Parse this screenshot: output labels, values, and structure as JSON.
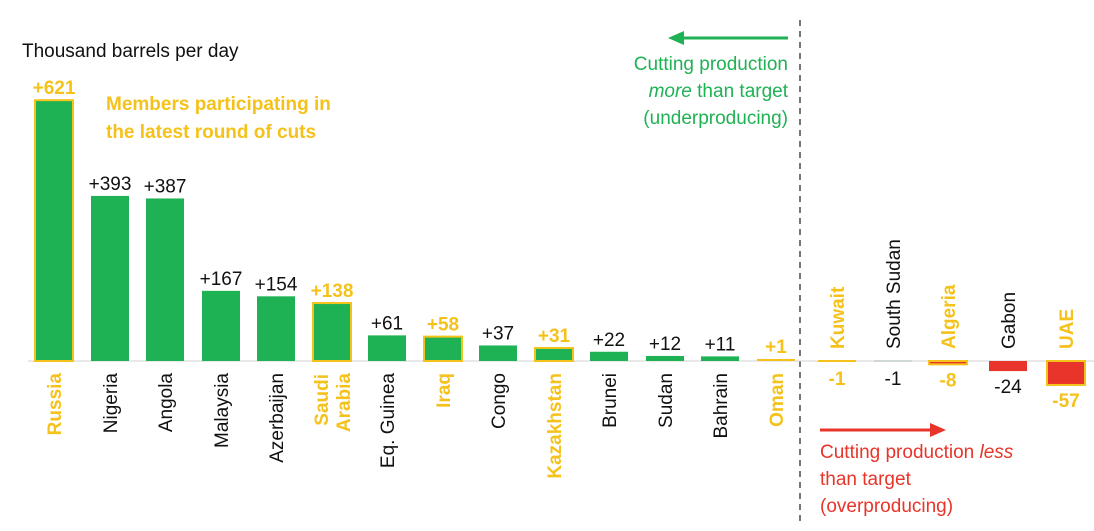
{
  "chart_data": {
    "type": "bar",
    "unit_label": "Thousand barrels per day",
    "categories": [
      "Russia",
      "Nigeria",
      "Angola",
      "Malaysia",
      "Azerbaijan",
      "Saudi Arabia",
      "Eq. Guinea",
      "Iraq",
      "Congo",
      "Kazakhstan",
      "Brunei",
      "Sudan",
      "Bahrain",
      "Oman",
      "Kuwait",
      "South Sudan",
      "Algeria",
      "Gabon",
      "UAE"
    ],
    "values": [
      621,
      393,
      387,
      167,
      154,
      138,
      61,
      58,
      37,
      31,
      22,
      12,
      11,
      1,
      -1,
      -1,
      -8,
      -24,
      -57
    ],
    "value_labels": [
      "+621",
      "+393",
      "+387",
      "+167",
      "+154",
      "+138",
      "+61",
      "+58",
      "+37",
      "+31",
      "+22",
      "+12",
      "+11",
      "+1",
      "-1",
      "-1",
      "-8",
      "-24",
      "-57"
    ],
    "participating_in_latest_cuts": [
      true,
      false,
      false,
      false,
      false,
      true,
      false,
      true,
      false,
      true,
      false,
      false,
      false,
      true,
      true,
      false,
      true,
      false,
      true
    ],
    "annotations": {
      "members_note": [
        "Members participating in",
        "the latest round of cuts"
      ],
      "underproducing": [
        "Cutting production",
        "more",
        " than target",
        "(underproducing)"
      ],
      "overproducing": [
        "Cutting production ",
        "less",
        "than target",
        "(overproducing)"
      ]
    },
    "colors": {
      "bar": "#1fb254",
      "participant_highlight": "#f5c21b",
      "negative_bar": "#e8342a",
      "underproducing_text": "#1fb254",
      "overproducing_text": "#e8342a",
      "label_text": "#111111",
      "divider": "#777777"
    }
  }
}
